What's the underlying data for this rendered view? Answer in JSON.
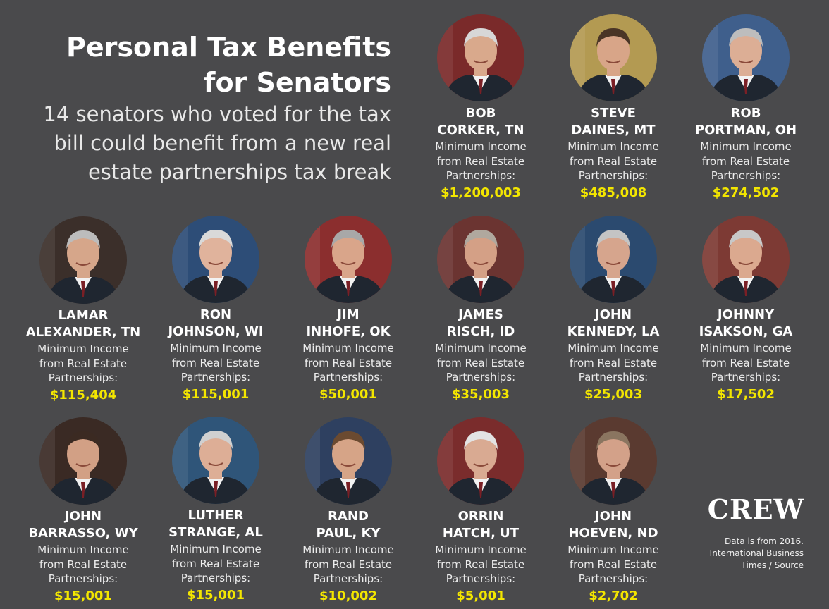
{
  "header": {
    "title": "Personal Tax Benefits for Senators",
    "subtitle": "14 senators who voted for the tax bill could benefit from a new real estate partnerships tax break"
  },
  "caption_text": "Minimum Income\nfrom Real Estate\nPartnerships:",
  "senators": [
    {
      "name": "BOB\nCORKER, TN",
      "amount": "$1,200,003",
      "photo_bg": "#7a2a2a",
      "skin": "#d9a98c",
      "hair": "#d7d7d7"
    },
    {
      "name": "STEVE\nDAINES, MT",
      "amount": "$485,008",
      "photo_bg": "#b39a52",
      "skin": "#d8a588",
      "hair": "#4a3526"
    },
    {
      "name": "ROB\nPORTMAN, OH",
      "amount": "$274,502",
      "photo_bg": "#3f5f8c",
      "skin": "#dcae95",
      "hair": "#bdbdbd"
    },
    {
      "name": "LAMAR\nALEXANDER, TN",
      "amount": "$115,404",
      "photo_bg": "#3b2f2a",
      "skin": "#d6a68a",
      "hair": "#bcbcbc"
    },
    {
      "name": "RON\nJOHNSON, WI",
      "amount": "$115,001",
      "photo_bg": "#2d4d77",
      "skin": "#e0b39c",
      "hair": "#d9d9d9"
    },
    {
      "name": "JIM\nINHOFE, OK",
      "amount": "$50,001",
      "photo_bg": "#8b2e2e",
      "skin": "#d9a58a",
      "hair": "#a8a8a8"
    },
    {
      "name": "JAMES\nRISCH, ID",
      "amount": "$35,003",
      "photo_bg": "#6b3431",
      "skin": "#d4a086",
      "hair": "#b0a89e"
    },
    {
      "name": "JOHN\nKENNEDY, LA",
      "amount": "$25,003",
      "photo_bg": "#2b4a6f",
      "skin": "#d6a58d",
      "hair": "#c4c4c4"
    },
    {
      "name": "JOHNNY\nISAKSON, GA",
      "amount": "$17,502",
      "photo_bg": "#7d3a34",
      "skin": "#dba98f",
      "hair": "#c8c8c8"
    },
    {
      "name": "JOHN\nBARRASSO, WY",
      "amount": "$15,001",
      "photo_bg": "#3a2a24",
      "skin": "#d2a085",
      "hair": "#3b2a22"
    },
    {
      "name": "LUTHER\nSTRANGE, AL",
      "amount": "$15,001",
      "photo_bg": "#2f5579",
      "skin": "#ddae96",
      "hair": "#d0d0d0"
    },
    {
      "name": "RAND\nPAUL, KY",
      "amount": "$10,002",
      "photo_bg": "#2e4060",
      "skin": "#d6a487",
      "hair": "#6b4a30"
    },
    {
      "name": "ORRIN\nHATCH, UT",
      "amount": "$5,001",
      "photo_bg": "#7a2c2c",
      "skin": "#d9aa92",
      "hair": "#e3e3e3"
    },
    {
      "name": "JOHN\nHOEVEN, ND",
      "amount": "$2,702",
      "photo_bg": "#5a3a30",
      "skin": "#d3a189",
      "hair": "#8a7560"
    }
  ],
  "logo": "CREW",
  "source_note": "Data is from 2016.\nInternational Business\nTimes / Source"
}
